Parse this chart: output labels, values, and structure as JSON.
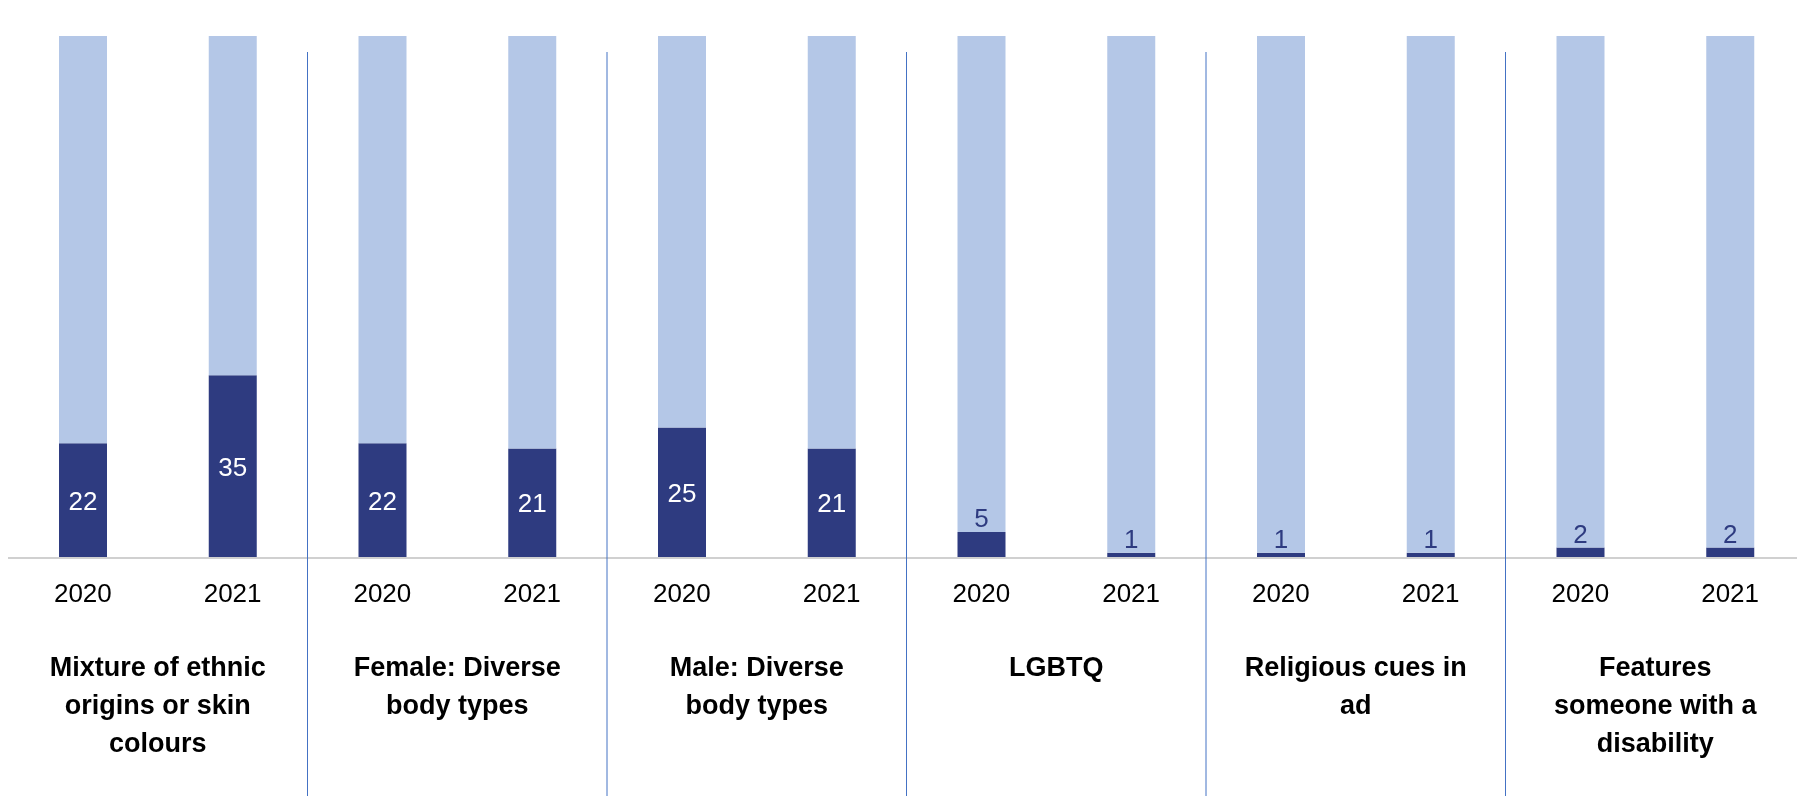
{
  "chart_data": {
    "type": "bar",
    "stacked": true,
    "categories": [
      "2020",
      "2021",
      "2020",
      "2021",
      "2020",
      "2021",
      "2020",
      "2021",
      "2020",
      "2021",
      "2020",
      "2021"
    ],
    "series": [
      {
        "color": "#2e3b80",
        "values": [
          22,
          35,
          22,
          21,
          25,
          21,
          5,
          1,
          1,
          1,
          2,
          2
        ],
        "value_labels": [
          "22",
          "35",
          "22",
          "21",
          "25",
          "21",
          "5",
          "1",
          "1",
          "1",
          "2",
          "2"
        ]
      },
      {
        "color": "#b4c7e7",
        "values": [
          78,
          65,
          78,
          79,
          75,
          79,
          95,
          99,
          99,
          99,
          98,
          98
        ]
      }
    ],
    "ylim": [
      0,
      100
    ],
    "tick_labels": "x",
    "annotations": [
      "Mixture of ethnic origins or skin colours",
      "Female: Diverse body types",
      "Male: Diverse body types",
      "LGBTQ",
      "Religious cues in ad",
      "Features someone with a disability"
    ]
  }
}
